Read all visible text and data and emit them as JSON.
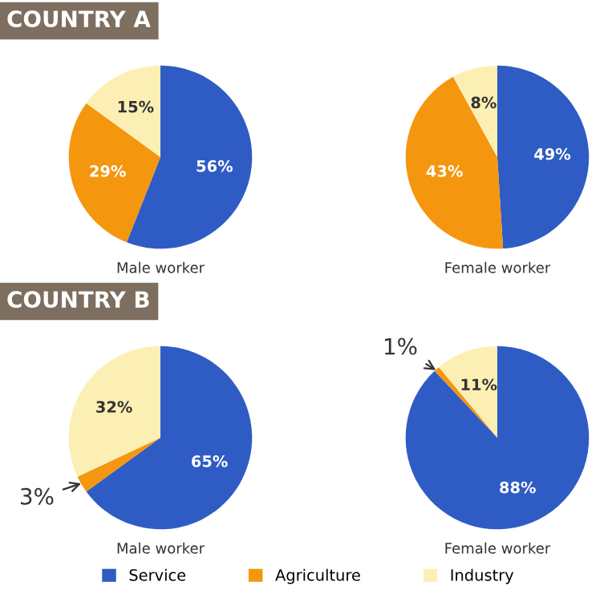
{
  "chart_data": [
    {
      "type": "pie",
      "title": "COUNTRY A",
      "xlabel": "Male worker",
      "categories": [
        "Service",
        "Agriculture",
        "Industry"
      ],
      "values": [
        56,
        29,
        15
      ],
      "colors": [
        "#2f5cc4",
        "#f5960f",
        "#fcefb4"
      ],
      "value_labels": [
        "56%",
        "29%",
        "15%"
      ],
      "legend": "bottom"
    },
    {
      "type": "pie",
      "xlabel": "Female worker",
      "categories": [
        null,
        null,
        null
      ],
      "values": [
        49,
        43,
        8
      ],
      "colors": [
        "#2f5cc4",
        "#f5960f",
        "#fcefb4"
      ],
      "value_labels": [
        "49%",
        "43%",
        "8%"
      ]
    },
    {
      "type": "pie",
      "title": "COUNTRY B",
      "xlabel": "Male worker",
      "categories": [
        null,
        null,
        null
      ],
      "values": [
        65,
        3,
        32
      ],
      "colors": [
        "#2f5cc4",
        "#f5960f",
        "#fcefb4"
      ],
      "value_labels": [
        "65%",
        "3%",
        "32%"
      ]
    },
    {
      "type": "pie",
      "xlabel": "Female worker",
      "categories": [
        null,
        null,
        null
      ],
      "values": [
        88,
        1,
        11
      ],
      "colors": [
        "#2f5cc4",
        "#f5960f",
        "#fcefb4"
      ],
      "value_labels": [
        "88%",
        "1%",
        "11%"
      ]
    }
  ]
}
